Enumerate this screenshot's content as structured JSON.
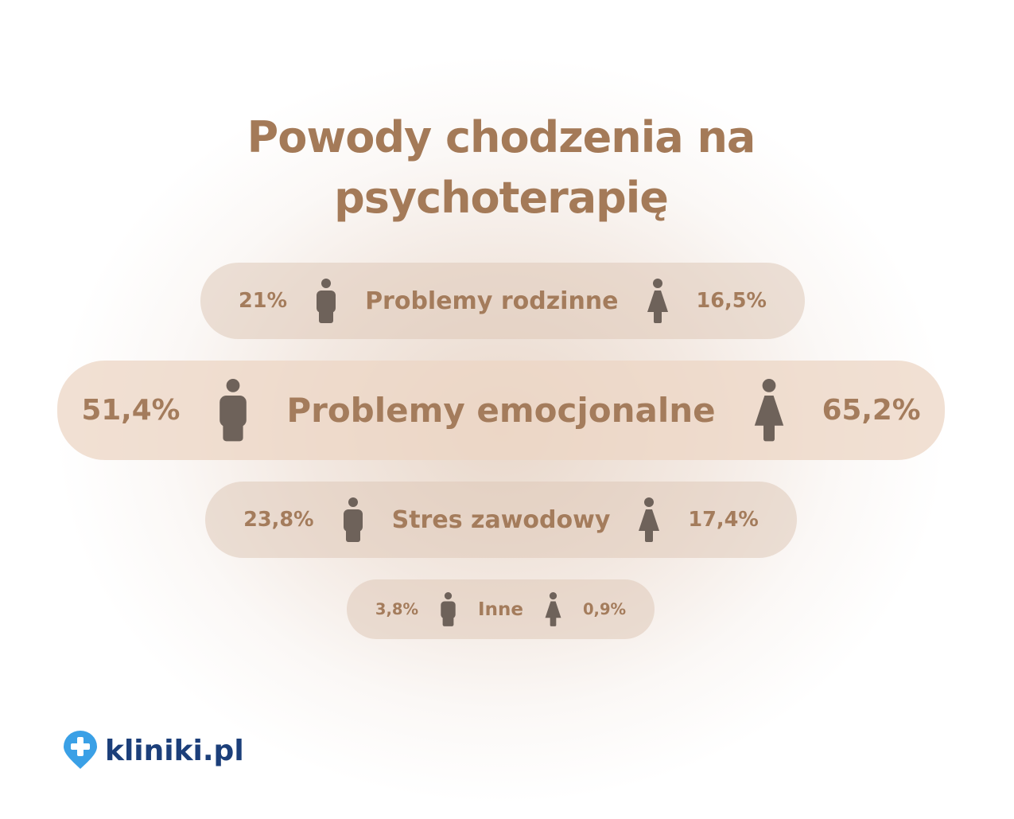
{
  "title": "Powody chodzenia na psychoterapię",
  "rows": [
    {
      "men": "21%",
      "label": "Problemy rodzinne",
      "women": "16,5%"
    },
    {
      "men": "51,4%",
      "label": "Problemy emocjonalne",
      "women": "65,2%"
    },
    {
      "men": "23,8%",
      "label": "Stres zawodowy",
      "women": "17,4%"
    },
    {
      "men": "3,8%",
      "label": "Inne",
      "women": "0,9%"
    }
  ],
  "logo": "kliniki.pl"
}
